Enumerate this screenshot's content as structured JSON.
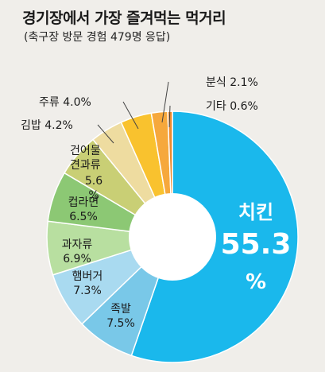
{
  "chart_data": {
    "type": "pie",
    "donut": true,
    "title": "경기장에서 가장 즐겨먹는 먹거리",
    "subtitle": "(축구장 방문 경험 479명 응답)",
    "slices": [
      {
        "label": "치킨",
        "value": 55.3,
        "value_text": "55.3",
        "unit": "%",
        "color": "#1ab8ec"
      },
      {
        "label": "족발",
        "value": 7.5,
        "value_text": "7.5%",
        "color": "#79c8e8"
      },
      {
        "label": "햄버거",
        "value": 7.3,
        "value_text": "7.3%",
        "color": "#a9daf0"
      },
      {
        "label": "과자류",
        "value": 6.9,
        "value_text": "6.9%",
        "color": "#b8dfa0"
      },
      {
        "label": "컵라면",
        "value": 6.5,
        "value_text": "6.5%",
        "color": "#8cc874"
      },
      {
        "label": "건어물 견과류",
        "label_lines": [
          "건어물",
          "견과류"
        ],
        "value": 5.6,
        "value_text": "5.6",
        "unit": "%",
        "color": "#c9cf75"
      },
      {
        "label": "김밥",
        "value": 4.2,
        "value_text": "4.2%",
        "color": "#eedca0"
      },
      {
        "label": "주류",
        "value": 4.0,
        "value_text": "4.0%",
        "color": "#f9c22e"
      },
      {
        "label": "분식",
        "value": 2.1,
        "value_text": "2.1%",
        "color": "#f6a83c"
      },
      {
        "label": "기타",
        "value": 0.6,
        "value_text": "0.6%",
        "color": "#ef8a2e"
      }
    ]
  }
}
